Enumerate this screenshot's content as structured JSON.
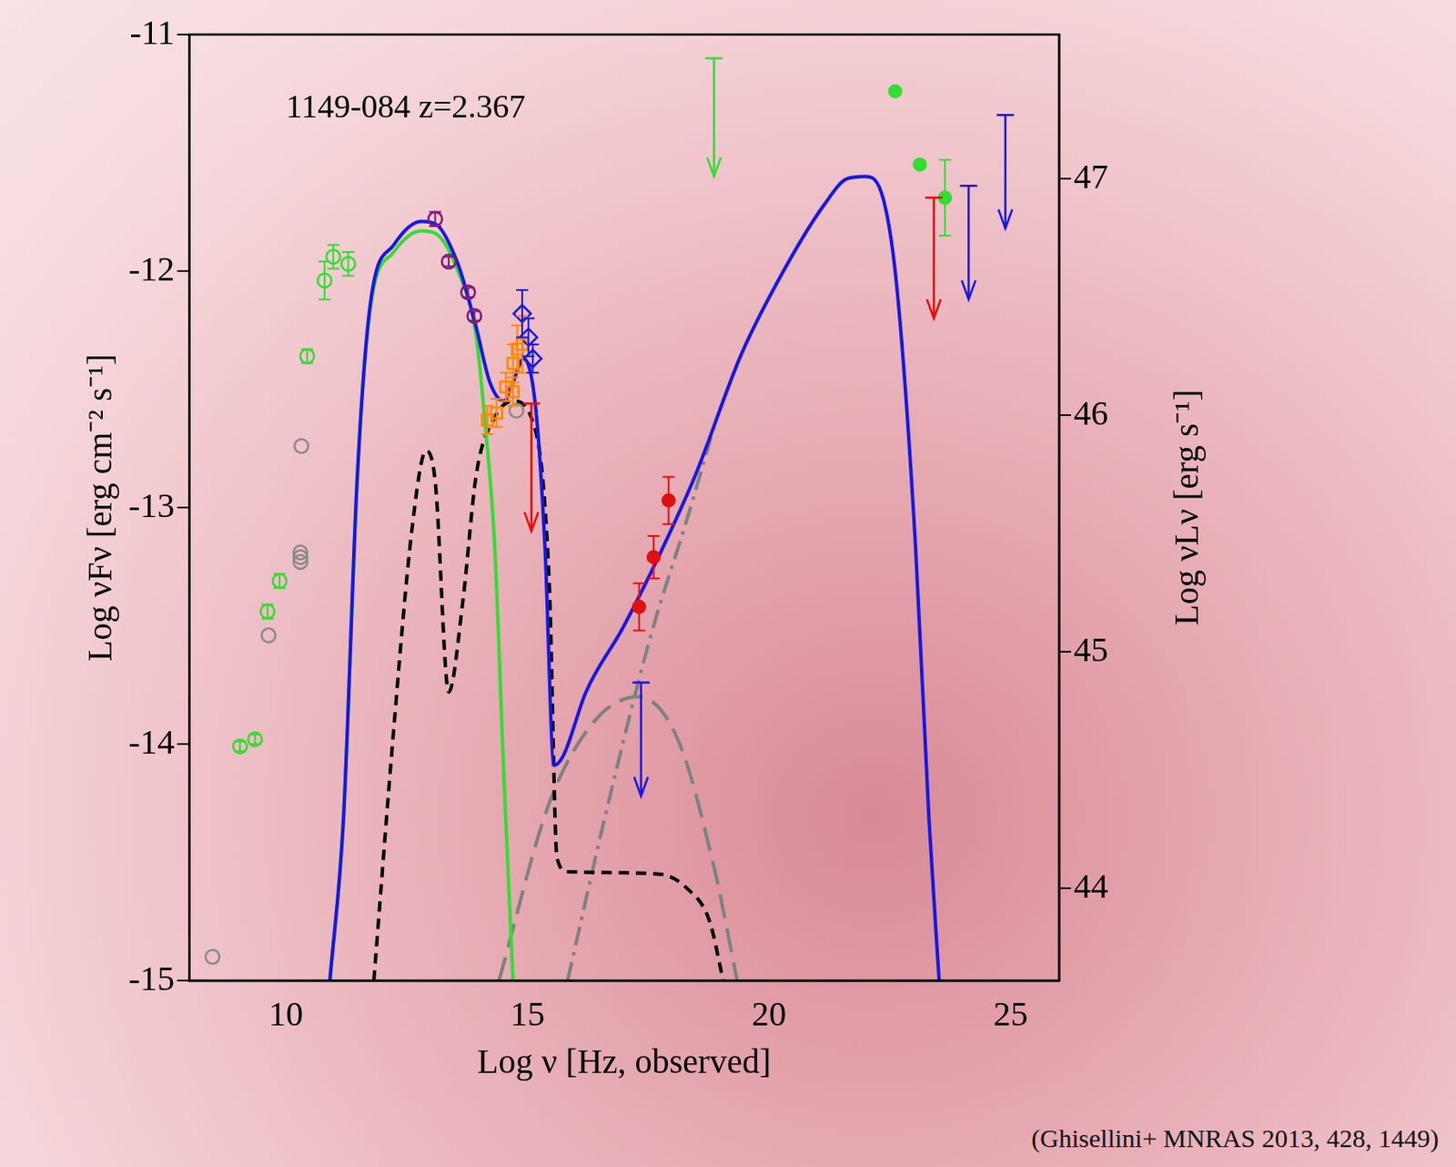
{
  "chart_data": {
    "type": "scatter",
    "title": "1149-084 z=2.367",
    "x_label": "Log ν [Hz, observed]",
    "y_label": "Log νFν [erg cm⁻² s⁻¹]",
    "y2_label": "Log νLν [erg s⁻¹]",
    "caption": "(Ghisellini+ MNRAS 2013, 428, 1449)",
    "xlim": [
      8,
      26
    ],
    "xticks": [
      10,
      15,
      20,
      25
    ],
    "ylim": [
      -15,
      -11
    ],
    "yticks": [
      -15,
      -14,
      -13,
      -12,
      -11
    ],
    "y2lim": [
      43.61,
      47.61
    ],
    "y2ticks": [
      44,
      45,
      46,
      47
    ],
    "grid": false,
    "legend": false,
    "series": [
      {
        "type": "line",
        "color": "#1818e0",
        "line_style": "solid",
        "x": [
          10.91,
          11.19,
          11.48,
          11.76,
          12.23,
          12.8,
          13.09,
          13.56,
          13.94,
          14.22,
          14.51,
          14.7,
          14.92,
          15.17,
          15.36,
          15.55,
          15.74,
          16.21,
          16.97,
          17.73,
          18.48,
          19.43,
          20.38,
          21.14,
          21.61,
          21.99,
          22.37,
          22.65,
          23.03,
          23.31,
          23.52
        ],
        "values": [
          -15,
          -14.32,
          -12.86,
          -12.12,
          -11.89,
          -11.79,
          -11.8,
          -11.97,
          -12.24,
          -12.47,
          -12.55,
          -12.47,
          -12.37,
          -12.58,
          -13.16,
          -14.09,
          -14.05,
          -13.78,
          -13.51,
          -13.2,
          -12.86,
          -12.35,
          -11.97,
          -11.72,
          -11.61,
          -11.6,
          -11.7,
          -12.08,
          -13.16,
          -14.32,
          -15
        ]
      },
      {
        "type": "line",
        "color": "#33dd33",
        "line_style": "solid",
        "x": [
          10.91,
          11.19,
          11.48,
          11.76,
          12.23,
          12.8,
          13.09,
          13.56,
          13.94,
          14.13,
          14.32,
          14.51,
          14.7
        ],
        "values": [
          -15,
          -14.32,
          -12.86,
          -12.14,
          -11.92,
          -11.83,
          -11.84,
          -12.0,
          -12.28,
          -12.66,
          -13.16,
          -14.13,
          -15
        ]
      },
      {
        "type": "line",
        "color": "#000000",
        "line_style": "dashed",
        "x": [
          11.82,
          12.23,
          12.61,
          12.9,
          13.09,
          13.37,
          13.66,
          13.94,
          14.32,
          14.7,
          15.08,
          15.45,
          15.61,
          15.83,
          17.73,
          18.3,
          18.77,
          19.05
        ],
        "values": [
          -15,
          -13.94,
          -13.09,
          -12.76,
          -12.89,
          -13.78,
          -13.4,
          -12.86,
          -12.62,
          -12.55,
          -12.62,
          -13.32,
          -14.48,
          -14.54,
          -14.55,
          -14.61,
          -14.75,
          -15
        ]
      },
      {
        "type": "line",
        "color": "#808080",
        "line_style": "long_dashed",
        "x": [
          14.41,
          15.45,
          16.4,
          17.29,
          18.11,
          18.86,
          19.34
        ],
        "values": [
          -15,
          -14.25,
          -13.9,
          -13.8,
          -13.98,
          -14.52,
          -15
        ]
      },
      {
        "type": "line",
        "color": "#808080",
        "line_style": "dash_dot",
        "x": [
          15.83,
          16.59,
          17.54,
          18.3,
          18.86
        ],
        "values": [
          -15,
          -14.32,
          -13.55,
          -13.05,
          -12.66
        ]
      },
      {
        "type": "scatter",
        "color": "#33dd33",
        "marker": "circle_open",
        "x": [
          9.05,
          9.36,
          9.62,
          9.87,
          10.44,
          10.8,
          10.98,
          11.29
        ],
        "values": [
          -14.01,
          -13.98,
          -13.44,
          -13.31,
          -12.36,
          -12.04,
          -11.94,
          -11.97
        ],
        "y_err": [
          0.02,
          0.02,
          0.03,
          0.03,
          0.03,
          0.08,
          0.05,
          0.05
        ]
      },
      {
        "type": "scatter",
        "color": "#8a8a8a",
        "marker": "circle_open",
        "x": [
          8.48,
          9.64,
          10.32,
          10.3,
          10.3,
          10.3,
          14.77
        ],
        "values": [
          -14.9,
          -13.54,
          -12.74,
          -13.19,
          -13.21,
          -13.23,
          -12.59
        ]
      },
      {
        "type": "scatter",
        "color": "#7a1d7a",
        "marker": "circle_open",
        "x": [
          13.09,
          13.37,
          13.77,
          13.9
        ],
        "values": [
          -11.78,
          -11.96,
          -12.09,
          -12.19
        ],
        "y_err": [
          0.03,
          0.02,
          0.02,
          0.02
        ]
      },
      {
        "type": "scatter",
        "color": "#ff8800",
        "marker": "square_open",
        "x": [
          14.17,
          14.36,
          14.55,
          14.7,
          14.79,
          14.89,
          14.7
        ],
        "values": [
          -12.63,
          -12.6,
          -12.49,
          -12.39,
          -12.33,
          -12.31,
          -12.51
        ],
        "y_err": [
          0.06,
          0.06,
          0.06,
          0.08,
          0.1,
          0.12,
          0.06
        ]
      },
      {
        "type": "scatter",
        "color": "#1818e0",
        "marker": "diamond_open",
        "x": [
          14.89,
          15.02,
          15.11
        ],
        "values": [
          -12.18,
          -12.28,
          -12.37
        ],
        "y_err": [
          0.1,
          0.08,
          0.06
        ]
      },
      {
        "type": "scatter",
        "color": "#e01010",
        "marker": "upper_limit",
        "x": [
          15.08
        ],
        "values": [
          -12.56
        ],
        "arrow_to": [
          -13.1
        ]
      },
      {
        "type": "scatter",
        "color": "#e01010",
        "marker": "circle",
        "x": [
          17.31,
          17.61,
          17.92
        ],
        "values": [
          -13.42,
          -13.21,
          -12.97
        ],
        "y_err": [
          0.1,
          0.09,
          0.1
        ]
      },
      {
        "type": "scatter",
        "color": "#1818e0",
        "marker": "upper_limit",
        "x": [
          17.35
        ],
        "values": [
          -13.74
        ],
        "arrow_to": [
          -14.22
        ]
      },
      {
        "type": "scatter",
        "color": "#33dd33",
        "marker": "upper_limit",
        "x": [
          18.86
        ],
        "values": [
          -11.1
        ],
        "arrow_to": [
          -11.6
        ]
      },
      {
        "type": "scatter",
        "color": "#33dd33",
        "marker": "circle",
        "x": [
          22.61,
          23.12,
          23.64
        ],
        "values": [
          -11.24,
          -11.55,
          -11.69
        ],
        "y_err": [
          null,
          null,
          0.16
        ]
      },
      {
        "type": "scatter",
        "color": "#e01010",
        "marker": "upper_limit",
        "x": [
          23.41
        ],
        "values": [
          -11.69
        ],
        "arrow_to": [
          -12.2
        ]
      },
      {
        "type": "scatter",
        "color": "#1818e0",
        "marker": "upper_limit",
        "x": [
          24.13,
          24.89
        ],
        "values": [
          -11.64,
          -11.34
        ],
        "arrow_to": [
          -12.12,
          -11.82
        ]
      }
    ]
  }
}
